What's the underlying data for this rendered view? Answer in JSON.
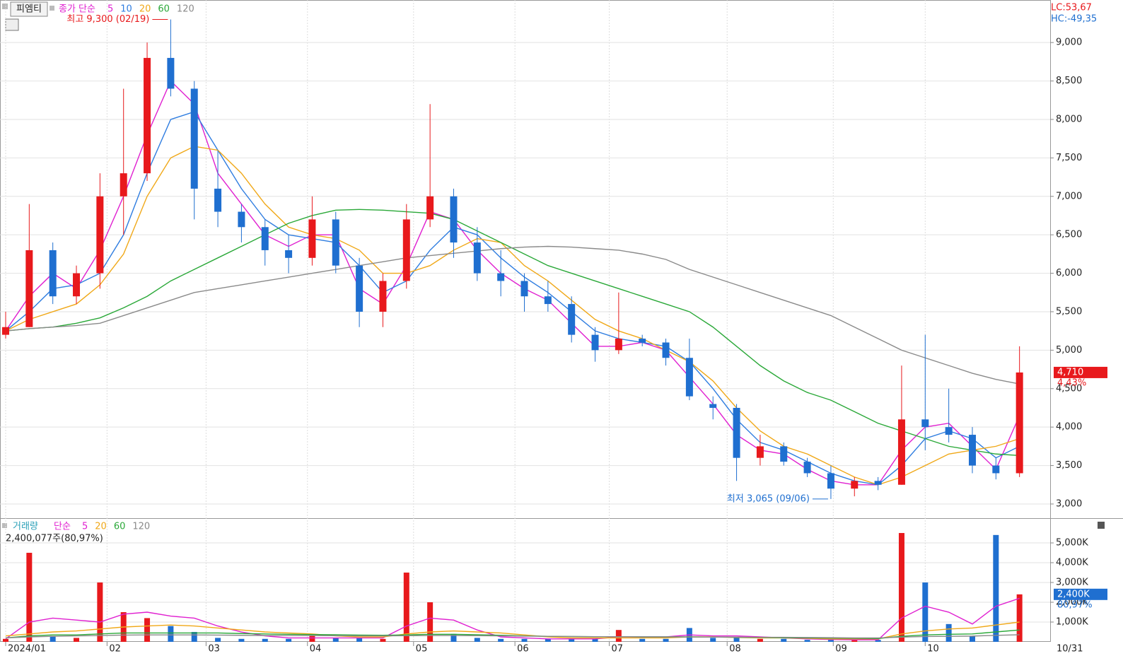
{
  "chart_data": {
    "type": "candlestick",
    "name": "피엠티",
    "ma_label": "종가 단순",
    "xticks": [
      {
        "value": 0,
        "label": "2024/01"
      },
      {
        "value": 4.3,
        "label": "02"
      },
      {
        "value": 8.5,
        "label": "03"
      },
      {
        "value": 12.8,
        "label": "04"
      },
      {
        "value": 17.3,
        "label": "05"
      },
      {
        "value": 21.6,
        "label": "06"
      },
      {
        "value": 25.6,
        "label": "07"
      },
      {
        "value": 30.6,
        "label": "08"
      },
      {
        "value": 35.1,
        "label": "09"
      },
      {
        "value": 39,
        "label": "10"
      }
    ],
    "end_label": "10/31",
    "xlim": [
      -0.24,
      44.3
    ],
    "ylim": [
      2816,
      9553
    ],
    "yticks": [
      {
        "value": 3000,
        "label": "3,000"
      },
      {
        "value": 3500,
        "label": "3,500"
      },
      {
        "value": 4000,
        "label": "4,000"
      },
      {
        "value": 4500,
        "label": "4,500"
      },
      {
        "value": 5000,
        "label": "5,000"
      },
      {
        "value": 5500,
        "label": "5,500"
      },
      {
        "value": 6000,
        "label": "6,000"
      },
      {
        "value": 6500,
        "label": "6,500"
      },
      {
        "value": 7000,
        "label": "7,000"
      },
      {
        "value": 7500,
        "label": "7,500"
      },
      {
        "value": 8000,
        "label": "8,000"
      },
      {
        "value": 8500,
        "label": "8,500"
      },
      {
        "value": 9000,
        "label": "9,000"
      }
    ],
    "grid": true,
    "up_color": "#e8191c",
    "down_color": "#1f6fd0",
    "open": [
      5200,
      5300,
      6300,
      5700,
      6000,
      7000,
      7300,
      8800,
      8400,
      7100,
      6800,
      6600,
      6300,
      6200,
      6700,
      6100,
      5500,
      5900,
      6700,
      7000,
      6400,
      6000,
      5900,
      5700,
      5600,
      5200,
      5000,
      5150,
      5100,
      4900,
      4300,
      4250,
      3600,
      3750,
      3550,
      3400,
      3200,
      3300,
      3250,
      4100,
      4000,
      3900,
      3500,
      3400
    ],
    "high": [
      5500,
      6900,
      6400,
      6100,
      7300,
      8400,
      9000,
      9300,
      8500,
      7600,
      6900,
      6700,
      6500,
      7000,
      6800,
      6200,
      6000,
      6900,
      8200,
      7100,
      6600,
      6300,
      6000,
      5900,
      5700,
      5300,
      5750,
      5200,
      5150,
      5150,
      4400,
      4300,
      3900,
      3800,
      3600,
      3500,
      3350,
      3350,
      4800,
      5200,
      4500,
      4000,
      3600,
      5050
    ],
    "low": [
      5150,
      5300,
      5600,
      5600,
      5800,
      6500,
      7200,
      8300,
      6700,
      6600,
      6400,
      6100,
      6000,
      6100,
      6000,
      5300,
      5300,
      5800,
      6600,
      6200,
      5900,
      5700,
      5500,
      5500,
      5100,
      4850,
      4950,
      5050,
      4800,
      4350,
      4100,
      3300,
      3500,
      3500,
      3350,
      3065,
      3100,
      3180,
      3250,
      3700,
      3800,
      3400,
      3320,
      3350
    ],
    "close": [
      5300,
      6300,
      5700,
      6000,
      7000,
      7300,
      8800,
      8400,
      7100,
      6800,
      6600,
      6300,
      6200,
      6700,
      6100,
      5500,
      5900,
      6700,
      7000,
      6400,
      6000,
      5900,
      5700,
      5600,
      5200,
      5000,
      5150,
      5100,
      4900,
      4400,
      4250,
      3600,
      3750,
      3550,
      3400,
      3200,
      3300,
      3250,
      4100,
      4000,
      3900,
      3500,
      3400,
      4710
    ],
    "series": [
      {
        "name": "5",
        "color": "#e020d0",
        "values": [
          5250,
          5700,
          6000,
          5800,
          6300,
          7000,
          7800,
          8500,
          8200,
          7300,
          6900,
          6500,
          6350,
          6500,
          6500,
          5800,
          5600,
          6100,
          6800,
          6700,
          6300,
          6000,
          5800,
          5650,
          5350,
          5050,
          5050,
          5100,
          5000,
          4650,
          4300,
          3900,
          3700,
          3650,
          3450,
          3300,
          3250,
          3250,
          3700,
          4000,
          4050,
          3750,
          3450,
          4150
        ]
      },
      {
        "name": "10",
        "color": "#2f7de0",
        "values": [
          5250,
          5500,
          5800,
          5850,
          6000,
          6500,
          7300,
          8000,
          8100,
          7600,
          7100,
          6700,
          6500,
          6450,
          6400,
          6100,
          5750,
          5900,
          6300,
          6600,
          6500,
          6200,
          5950,
          5750,
          5500,
          5250,
          5150,
          5100,
          5050,
          4850,
          4500,
          4100,
          3800,
          3700,
          3550,
          3400,
          3300,
          3250,
          3500,
          3850,
          3950,
          3850,
          3600,
          3750
        ]
      },
      {
        "name": "20",
        "color": "#f0a818",
        "values": [
          5250,
          5400,
          5500,
          5600,
          5850,
          6250,
          7000,
          7500,
          7650,
          7600,
          7300,
          6900,
          6600,
          6500,
          6450,
          6300,
          6000,
          6000,
          6100,
          6300,
          6450,
          6400,
          6100,
          5900,
          5650,
          5400,
          5250,
          5150,
          5000,
          4850,
          4600,
          4250,
          3950,
          3750,
          3650,
          3500,
          3350,
          3250,
          3350,
          3500,
          3650,
          3700,
          3750,
          3850
        ]
      },
      {
        "name": "60",
        "color": "#2aa838",
        "values": [
          5250,
          5280,
          5300,
          5350,
          5420,
          5550,
          5700,
          5900,
          6050,
          6200,
          6350,
          6500,
          6650,
          6750,
          6820,
          6830,
          6820,
          6800,
          6780,
          6700,
          6550,
          6400,
          6250,
          6100,
          6000,
          5900,
          5800,
          5700,
          5600,
          5500,
          5300,
          5050,
          4800,
          4600,
          4450,
          4350,
          4200,
          4050,
          3950,
          3850,
          3750,
          3700,
          3650,
          3630
        ]
      },
      {
        "name": "120",
        "color": "#8a8a8a",
        "values": [
          5250,
          5280,
          5300,
          5320,
          5350,
          5450,
          5550,
          5650,
          5750,
          5800,
          5850,
          5900,
          5950,
          6000,
          6050,
          6100,
          6150,
          6200,
          6230,
          6260,
          6290,
          6320,
          6340,
          6350,
          6340,
          6320,
          6300,
          6250,
          6180,
          6050,
          5950,
          5850,
          5750,
          5650,
          5550,
          5450,
          5300,
          5150,
          5000,
          4900,
          4800,
          4700,
          4620,
          4560
        ]
      }
    ],
    "high_note": "최고 9,300 (02/19)",
    "high_index": 7,
    "high_value": 9300,
    "low_note": "최저 3,065 (09/06)",
    "low_index": 35,
    "low_value": 3065,
    "lc": "LC:53,67",
    "hc": "HC:-49,35",
    "last_label": "4,710",
    "last_change": "4,43%",
    "volume": {
      "title": "거래량",
      "ma_label": "단순",
      "info": "2,400,077주(80,97%)",
      "ylim": [
        0,
        6180000
      ],
      "yticks": [
        {
          "value": 1000000,
          "label": "1,000K"
        },
        {
          "value": 2000000,
          "label": "2,000K"
        },
        {
          "value": 3000000,
          "label": "3,000K"
        },
        {
          "value": 4000000,
          "label": "4,000K"
        },
        {
          "value": 5000000,
          "label": "5,000K"
        }
      ],
      "values": [
        150000,
        4500000,
        300000,
        200000,
        3000000,
        1500000,
        1200000,
        800000,
        500000,
        200000,
        150000,
        150000,
        150000,
        300000,
        200000,
        200000,
        150000,
        3500000,
        2000000,
        400000,
        200000,
        150000,
        150000,
        150000,
        150000,
        150000,
        600000,
        150000,
        150000,
        700000,
        200000,
        250000,
        150000,
        150000,
        100000,
        100000,
        100000,
        100000,
        5500000,
        3000000,
        900000,
        300000,
        5400000,
        2400077
      ],
      "last_label": "2,400K",
      "last_change": "80,97%",
      "series": [
        {
          "name": "5",
          "color": "#e020d0",
          "values": [
            150000,
            1000000,
            1200000,
            1100000,
            1000000,
            1400000,
            1500000,
            1300000,
            1200000,
            800000,
            500000,
            300000,
            200000,
            200000,
            200000,
            200000,
            200000,
            800000,
            1200000,
            1100000,
            600000,
            250000,
            200000,
            150000,
            150000,
            150000,
            250000,
            250000,
            250000,
            350000,
            300000,
            300000,
            250000,
            200000,
            150000,
            120000,
            100000,
            100000,
            1200000,
            1800000,
            1500000,
            900000,
            1800000,
            2200000
          ]
        },
        {
          "name": "20",
          "color": "#f0a818",
          "values": [
            300000,
            400000,
            500000,
            550000,
            650000,
            750000,
            800000,
            850000,
            800000,
            700000,
            600000,
            500000,
            450000,
            400000,
            300000,
            250000,
            250000,
            400000,
            500000,
            550000,
            500000,
            450000,
            350000,
            250000,
            200000,
            200000,
            200000,
            200000,
            200000,
            250000,
            250000,
            220000,
            200000,
            200000,
            180000,
            150000,
            150000,
            150000,
            400000,
            550000,
            650000,
            700000,
            850000,
            1000000
          ]
        },
        {
          "name": "60",
          "color": "#2aa838",
          "values": [
            200000,
            300000,
            350000,
            350000,
            400000,
            450000,
            450000,
            450000,
            450000,
            450000,
            420000,
            400000,
            380000,
            370000,
            360000,
            340000,
            330000,
            350000,
            380000,
            380000,
            360000,
            330000,
            300000,
            280000,
            270000,
            260000,
            260000,
            250000,
            250000,
            250000,
            240000,
            230000,
            220000,
            210000,
            200000,
            190000,
            180000,
            170000,
            280000,
            350000,
            380000,
            400000,
            500000,
            600000
          ]
        },
        {
          "name": "120",
          "color": "#8a8a8a",
          "values": [
            200000,
            250000,
            280000,
            300000,
            320000,
            340000,
            350000,
            350000,
            350000,
            340000,
            330000,
            320000,
            320000,
            320000,
            310000,
            300000,
            300000,
            310000,
            320000,
            320000,
            310000,
            300000,
            290000,
            280000,
            270000,
            260000,
            260000,
            250000,
            250000,
            250000,
            240000,
            240000,
            230000,
            230000,
            220000,
            210000,
            200000,
            200000,
            240000,
            270000,
            280000,
            290000,
            330000,
            360000
          ]
        }
      ]
    }
  }
}
